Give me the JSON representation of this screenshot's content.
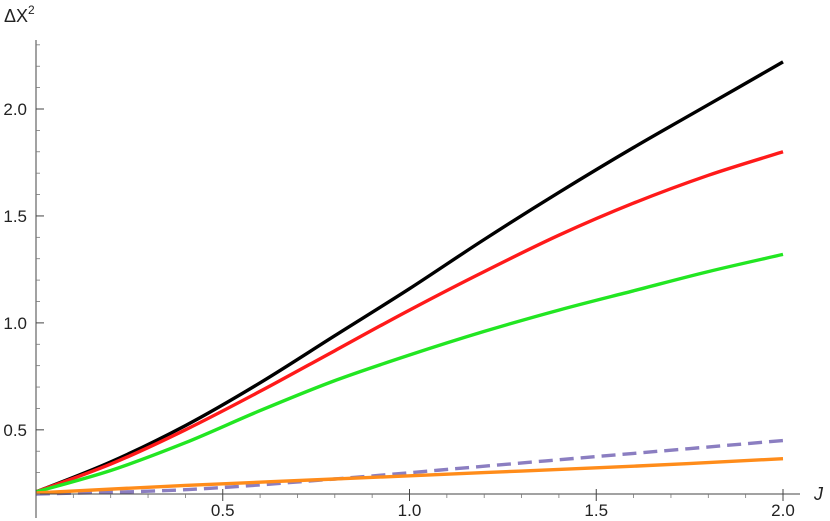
{
  "chart_data": {
    "type": "line",
    "title": "",
    "xlabel": "J",
    "ylabel_base": "ΔX",
    "ylabel_sup": "2",
    "xlim": [
      0,
      2.0
    ],
    "ylim": [
      0.2,
      2.3
    ],
    "x_axis_crosses_y_at": 0.2,
    "grid": false,
    "legend": "none",
    "x_ticks": [
      {
        "value": 0.5,
        "label": "0.5"
      },
      {
        "value": 1.0,
        "label": "1.0"
      },
      {
        "value": 1.5,
        "label": "1.5"
      },
      {
        "value": 2.0,
        "label": "2.0"
      }
    ],
    "y_ticks": [
      {
        "value": 0.5,
        "label": "0.5"
      },
      {
        "value": 1.0,
        "label": "1.0"
      },
      {
        "value": 1.5,
        "label": "1.5"
      },
      {
        "value": 2.0,
        "label": "2.0"
      }
    ],
    "series": [
      {
        "color": "#000000",
        "dashed": false,
        "x": [
          0,
          0.2,
          0.4,
          0.6,
          0.8,
          1.0,
          1.2,
          1.4,
          1.6,
          1.8,
          2.0
        ],
        "y": [
          0.21,
          0.35,
          0.52,
          0.72,
          0.94,
          1.16,
          1.39,
          1.61,
          1.82,
          2.02,
          2.22
        ]
      },
      {
        "color": "#ff1a1a",
        "dashed": false,
        "x": [
          0,
          0.2,
          0.4,
          0.6,
          0.8,
          1.0,
          1.2,
          1.4,
          1.6,
          1.8,
          2.0
        ],
        "y": [
          0.21,
          0.34,
          0.5,
          0.68,
          0.87,
          1.06,
          1.24,
          1.41,
          1.56,
          1.69,
          1.8
        ]
      },
      {
        "color": "#22e622",
        "dashed": false,
        "x": [
          0,
          0.2,
          0.4,
          0.6,
          0.8,
          1.0,
          1.2,
          1.4,
          1.6,
          1.8,
          2.0
        ],
        "y": [
          0.21,
          0.31,
          0.44,
          0.59,
          0.73,
          0.85,
          0.96,
          1.06,
          1.15,
          1.24,
          1.32
        ]
      },
      {
        "color": "#8b7ec1",
        "dashed": true,
        "x": [
          0,
          0.4,
          0.8,
          1.2,
          1.6,
          2.0
        ],
        "y": [
          0.2,
          0.22,
          0.27,
          0.33,
          0.39,
          0.45
        ]
      },
      {
        "color": "#ff8c1a",
        "dashed": false,
        "x": [
          0,
          0.4,
          0.8,
          1.2,
          1.6,
          2.0
        ],
        "y": [
          0.205,
          0.24,
          0.27,
          0.3,
          0.33,
          0.365
        ]
      }
    ]
  }
}
